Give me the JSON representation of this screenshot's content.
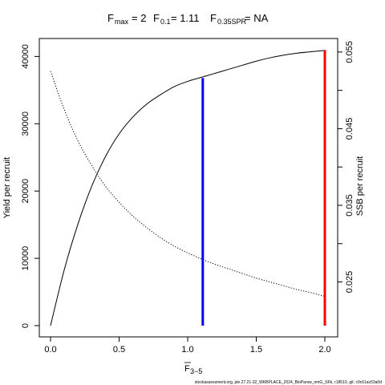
{
  "chart_data": {
    "type": "line",
    "title": {
      "fmax_label": "F",
      "fmax_sub": "max",
      "fmax_value": "= 2",
      "f01_label": "F",
      "f01_sub": "0.1",
      "f01_value": "= 1.11",
      "fspr_label": "F",
      "fspr_sub": "0.35SPR",
      "fspr_value": "= NA"
    },
    "xlabel": "F",
    "xlabel_sub": "3−5",
    "ylabel_left": "Yield per recruit",
    "ylabel_right": "SSB per recruit",
    "xlim": [
      0,
      2
    ],
    "ylim_left": [
      0,
      41000
    ],
    "ylim_right": [
      0.0193,
      0.0553
    ],
    "x_ticks": [
      0,
      0.5,
      1,
      1.5,
      2
    ],
    "x_tick_labels": [
      "0.0",
      "0.5",
      "1.0",
      "1.5",
      "2.0"
    ],
    "y_left_ticks": [
      0,
      10000,
      20000,
      30000,
      40000
    ],
    "y_left_tick_labels": [
      "0",
      "10000",
      "20000",
      "30000",
      "40000"
    ],
    "y_right_ticks": [
      0.025,
      0.035,
      0.045,
      0.055
    ],
    "y_right_tick_labels": [
      "0.025",
      "0.035",
      "0.045",
      "0.055"
    ],
    "y_right_minor_ticks": [
      0.03,
      0.04,
      0.05
    ],
    "series": [
      {
        "axis": "left",
        "line": "solid",
        "color": "#000000",
        "x": [
          0,
          0.1,
          0.2,
          0.3,
          0.4,
          0.5,
          0.6,
          0.7,
          0.8,
          0.9,
          1.0,
          1.1,
          1.2,
          1.3,
          1.4,
          1.5,
          1.6,
          1.7,
          1.8,
          1.9,
          2.0
        ],
        "y": [
          0,
          8300,
          15100,
          20700,
          25100,
          28500,
          31000,
          32900,
          34300,
          35500,
          36300,
          36900,
          37500,
          38100,
          38700,
          39300,
          39800,
          40200,
          40500,
          40700,
          40900
        ]
      },
      {
        "axis": "right",
        "line": "dotted",
        "color": "#000000",
        "x": [
          0,
          0.1,
          0.2,
          0.3,
          0.4,
          0.5,
          0.6,
          0.7,
          0.8,
          0.9,
          1.0,
          1.1,
          1.2,
          1.3,
          1.4,
          1.5,
          1.6,
          1.7,
          1.8,
          1.9,
          2.0
        ],
        "y": [
          0.0525,
          0.0475,
          0.0434,
          0.0402,
          0.0375,
          0.0354,
          0.0336,
          0.0321,
          0.0308,
          0.0297,
          0.0288,
          0.028,
          0.0273,
          0.0267,
          0.0261,
          0.0255,
          0.025,
          0.0245,
          0.024,
          0.0236,
          0.0231
        ]
      }
    ],
    "reference_lines": [
      {
        "x": 1.11,
        "y_top": 36800,
        "color": "#0000ff"
      },
      {
        "x": 2.0,
        "y_top": 40950,
        "color": "#ff0000"
      }
    ]
  },
  "footer": "stockassessment.org, ple.27.21-32_WKBPLACE_2024_BioParsw_nmG_SFb, r18510, git: c9c61ac53a0d"
}
